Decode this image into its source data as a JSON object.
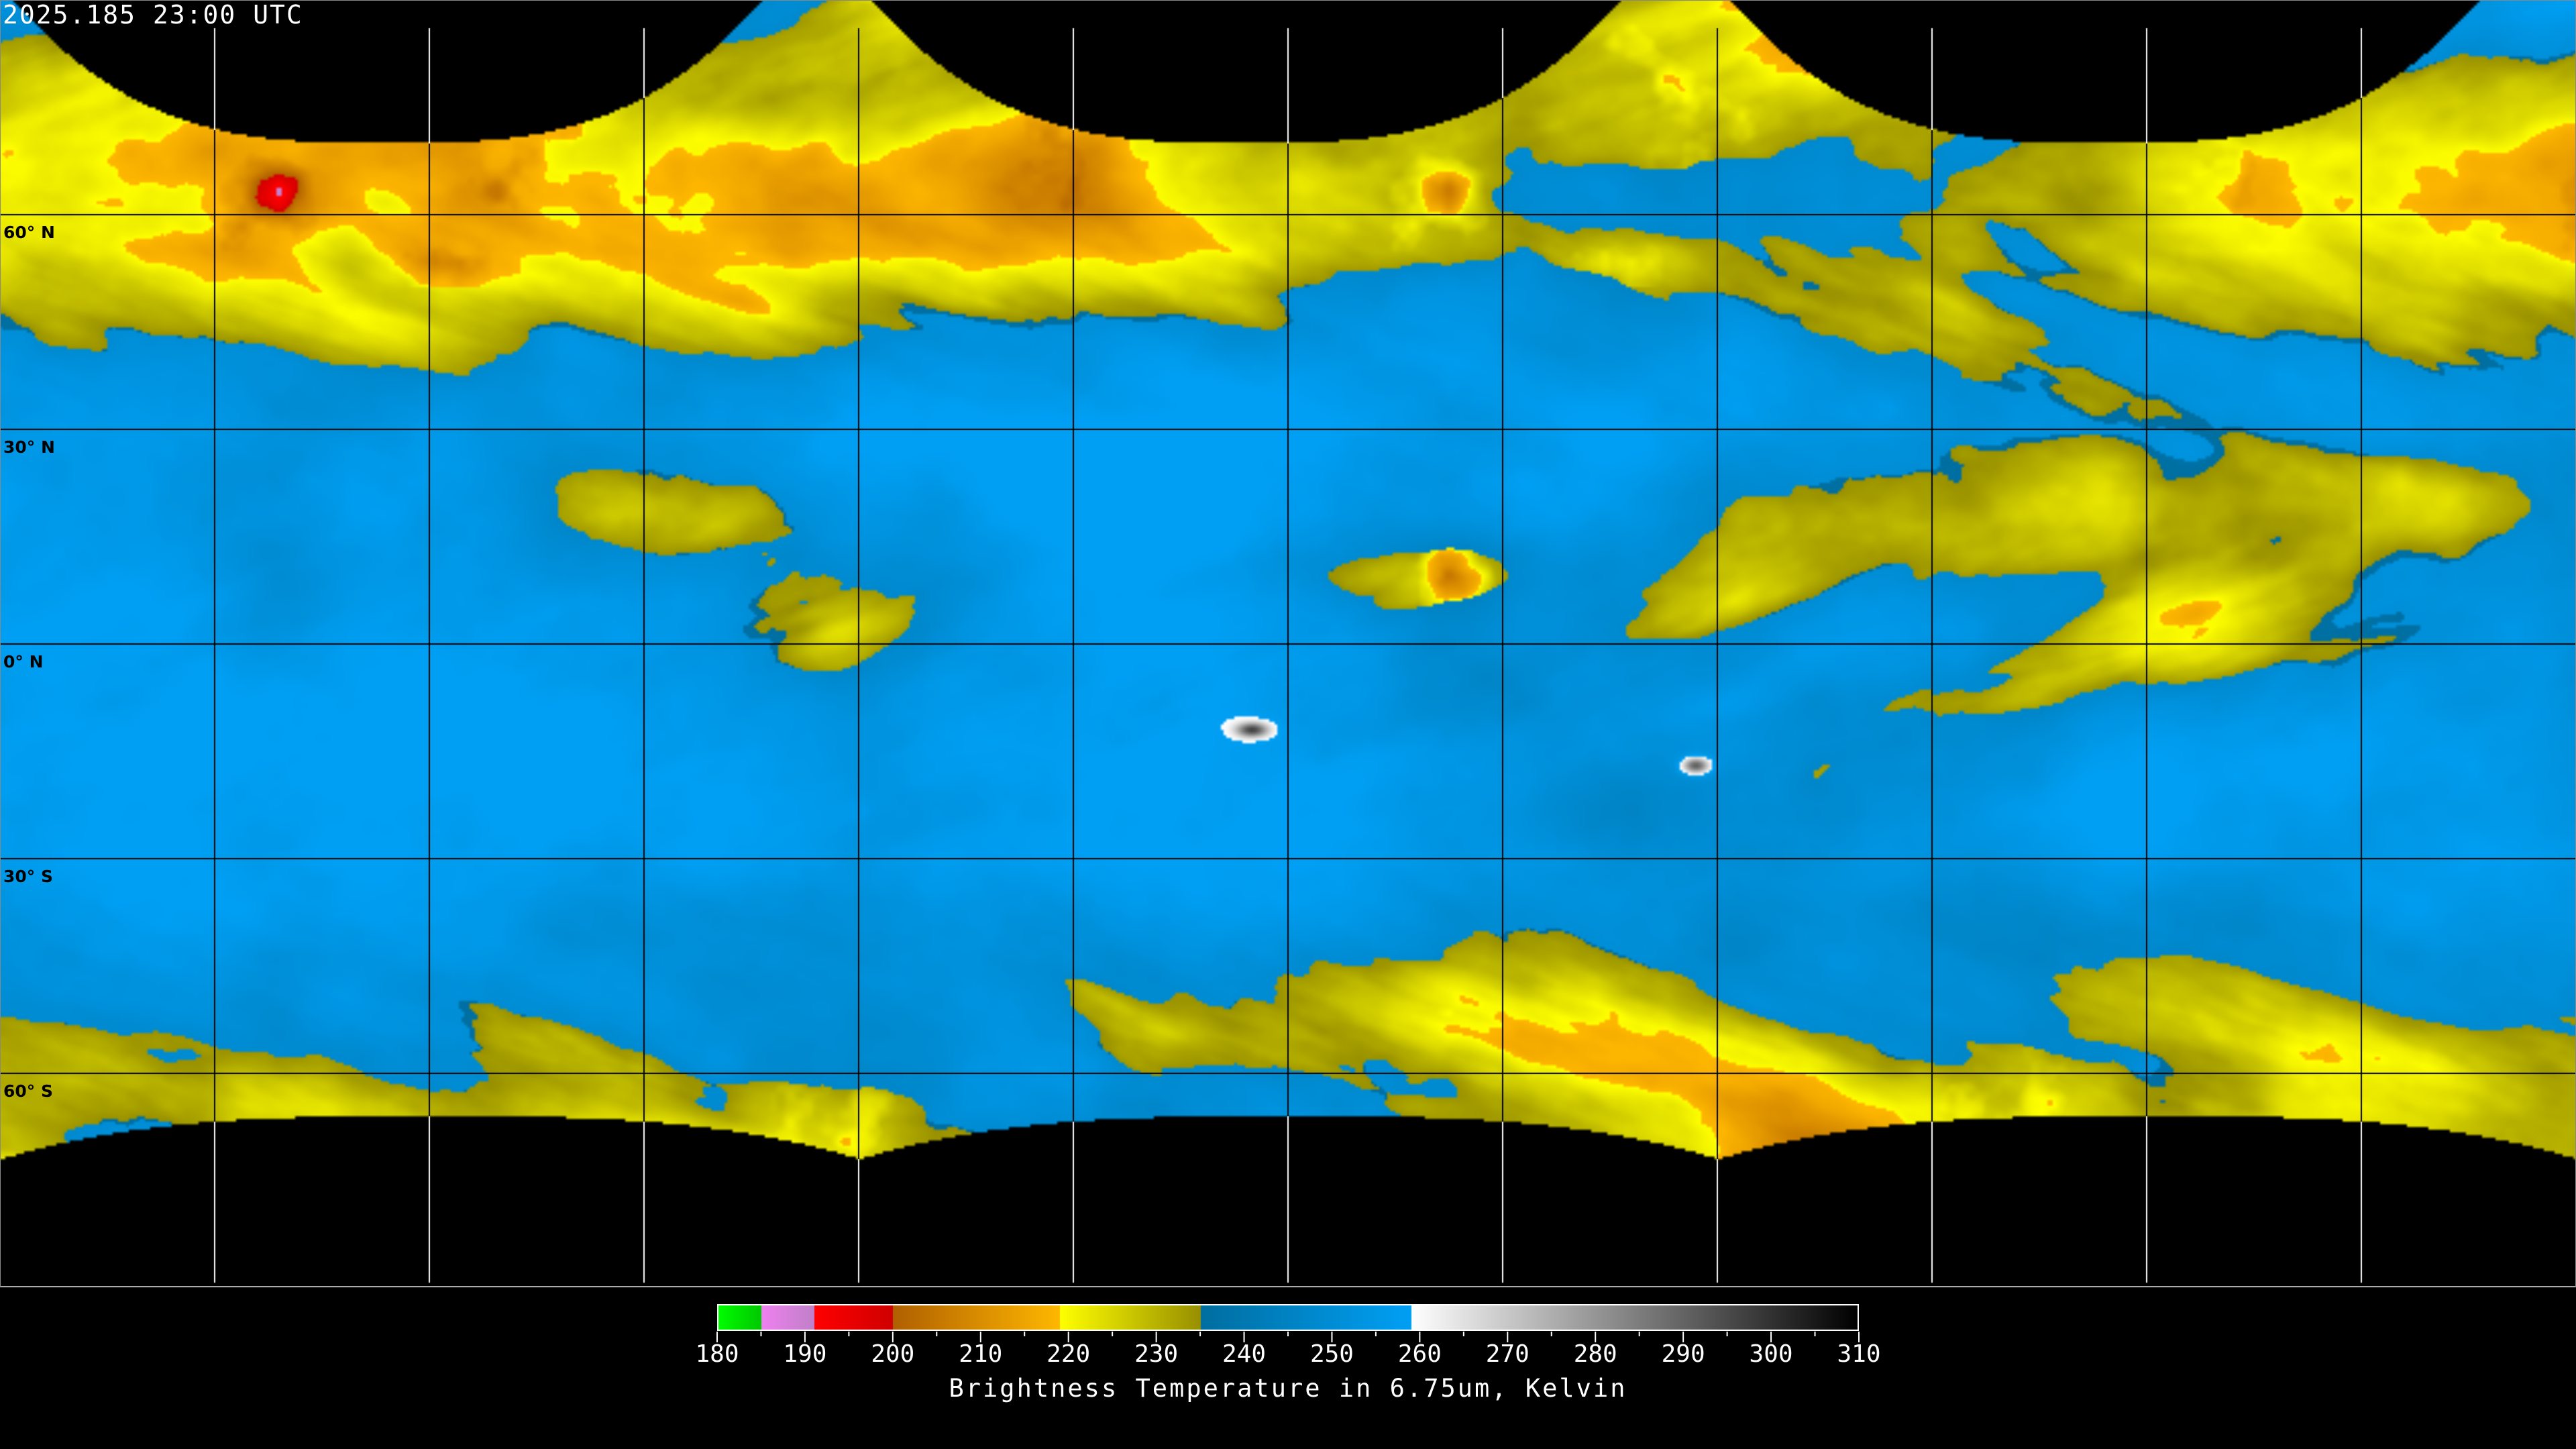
{
  "header": {
    "timestamp": "2025.185 23:00 UTC"
  },
  "map": {
    "projection": "equirectangular",
    "lon_range": [
      -180,
      180
    ],
    "lat_range": [
      -90,
      90
    ],
    "grid_spacing_deg": 30,
    "lat_labels": [
      {
        "lat": 60,
        "text": "60° N"
      },
      {
        "lat": 30,
        "text": "30° N"
      },
      {
        "lat": 0,
        "text": "0° N"
      },
      {
        "lat": -30,
        "text": "30° S"
      },
      {
        "lat": -60,
        "text": "60° S"
      }
    ],
    "grid_color_on_data": "#000000",
    "grid_color_on_background": "#ffffff",
    "background_color": "#000000"
  },
  "colorbar": {
    "title": "Brightness Temperature in 6.75um, Kelvin",
    "min": 180,
    "max": 310,
    "tick_labels": [
      "180",
      "190",
      "200",
      "210",
      "220",
      "230",
      "240",
      "250",
      "260",
      "270",
      "280",
      "290",
      "300",
      "310"
    ],
    "segments": [
      {
        "from": 180,
        "to": 185,
        "c0": "#00ff00",
        "c1": "#00c800"
      },
      {
        "from": 185,
        "to": 191,
        "c0": "#f080f0",
        "c1": "#c080c8"
      },
      {
        "from": 191,
        "to": 200,
        "c0": "#ff0000",
        "c1": "#d00000"
      },
      {
        "from": 200,
        "to": 219,
        "c0": "#b06000",
        "c1": "#ffb800"
      },
      {
        "from": 219,
        "to": 235,
        "c0": "#ffff00",
        "c1": "#989000"
      },
      {
        "from": 235,
        "to": 259,
        "c0": "#006ea0",
        "c1": "#00a0f5"
      },
      {
        "from": 259,
        "to": 310,
        "c0": "#ffffff",
        "c1": "#000000"
      }
    ]
  }
}
